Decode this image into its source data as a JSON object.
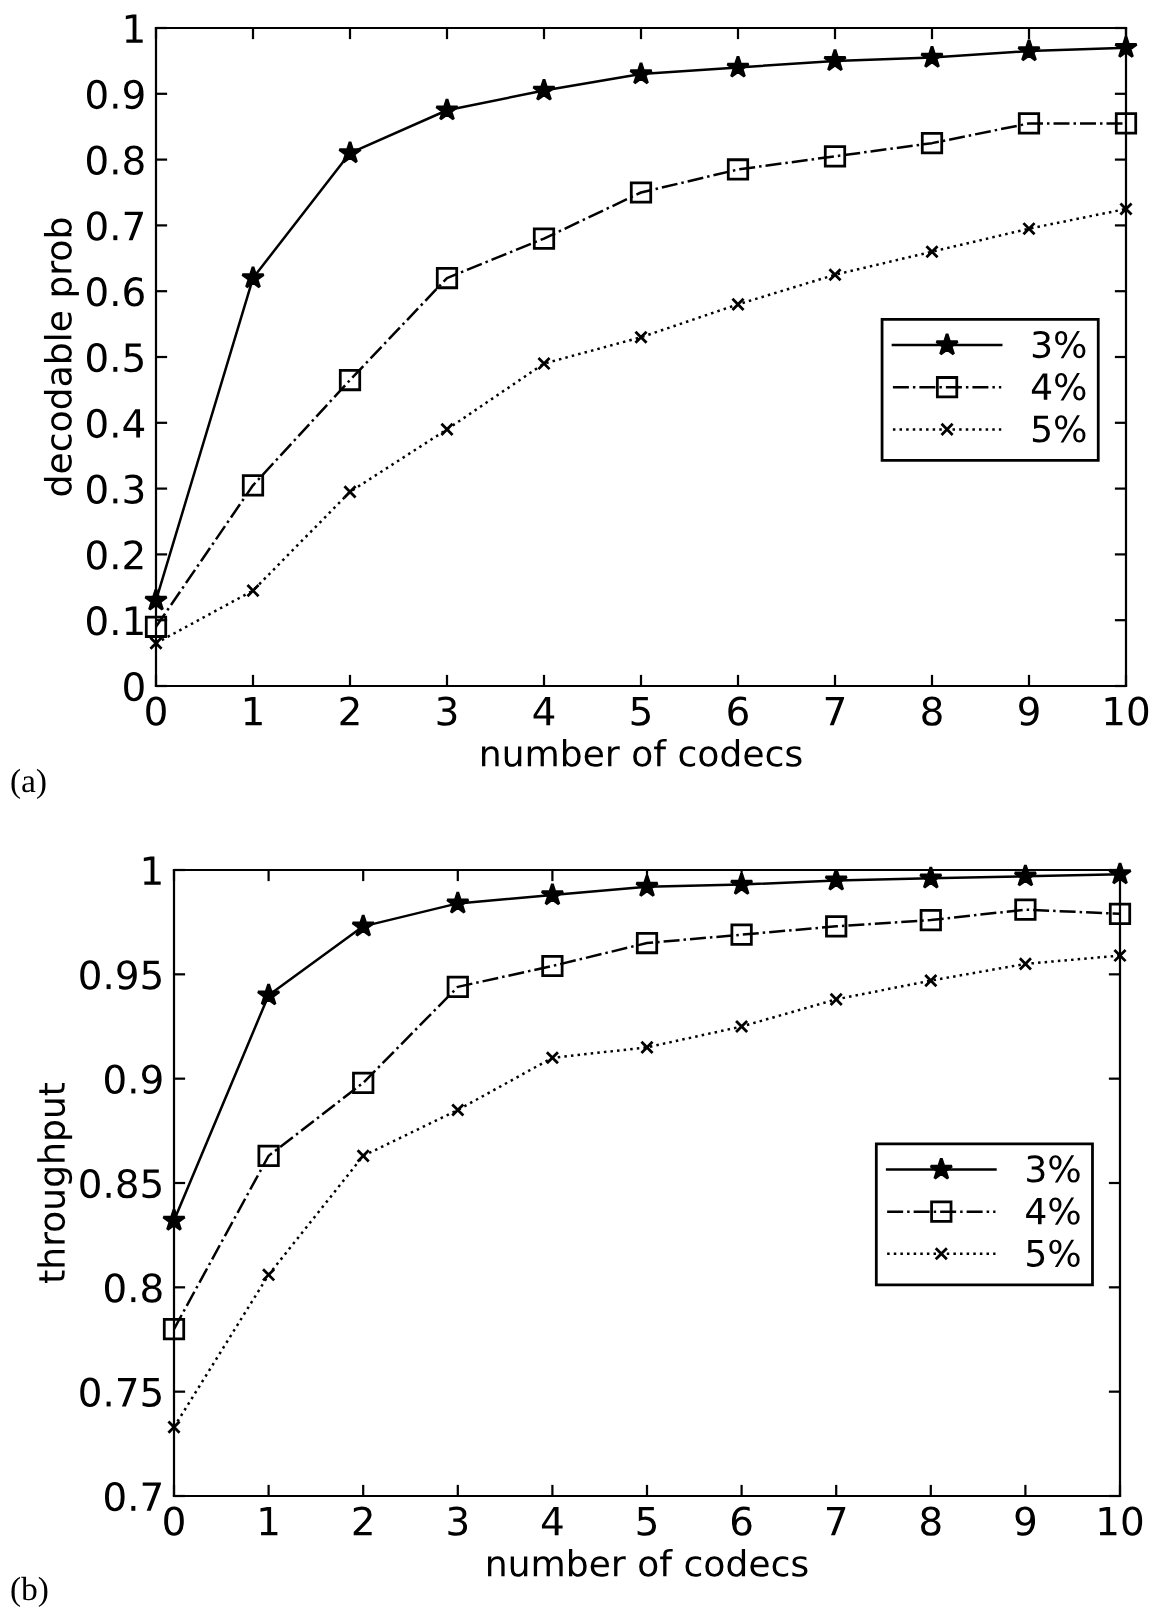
{
  "chart_data": [
    {
      "type": "line",
      "xlabel": "number of codecs",
      "ylabel": "decodable prob",
      "annotations": [
        "(a)"
      ],
      "x": [
        0,
        1,
        2,
        3,
        4,
        5,
        6,
        7,
        8,
        9,
        10
      ],
      "series": [
        {
          "name": "3%",
          "color": "#000000",
          "marker": "star",
          "line_style": "solid",
          "values": [
            0.13,
            0.62,
            0.81,
            0.875,
            0.905,
            0.93,
            0.94,
            0.95,
            0.955,
            0.965,
            0.97
          ]
        },
        {
          "name": "4%",
          "color": "#000000",
          "marker": "square",
          "line_style": "dashdot",
          "values": [
            0.09,
            0.305,
            0.465,
            0.62,
            0.68,
            0.75,
            0.785,
            0.805,
            0.825,
            0.855,
            0.855
          ]
        },
        {
          "name": "5%",
          "color": "#000000",
          "marker": "cross",
          "line_style": "dotted",
          "values": [
            0.065,
            0.145,
            0.295,
            0.39,
            0.49,
            0.53,
            0.58,
            0.625,
            0.66,
            0.695,
            0.725
          ]
        }
      ],
      "xlim": [
        0,
        10
      ],
      "xticks": [
        0,
        1,
        2,
        3,
        4,
        5,
        6,
        7,
        8,
        9,
        10
      ],
      "ylim": [
        0,
        1
      ],
      "yticks": [
        0,
        0.1,
        0.2,
        0.3,
        0.4,
        0.5,
        0.6,
        0.7,
        0.8,
        0.9,
        1
      ],
      "grid": false,
      "legend": "right"
    },
    {
      "type": "line",
      "xlabel": "number of codecs",
      "ylabel": "throughput",
      "annotations": [
        "(b)"
      ],
      "x": [
        0,
        1,
        2,
        3,
        4,
        5,
        6,
        7,
        8,
        9,
        10
      ],
      "series": [
        {
          "name": "3%",
          "color": "#000000",
          "marker": "star",
          "line_style": "solid",
          "values": [
            0.832,
            0.94,
            0.973,
            0.984,
            0.988,
            0.992,
            0.993,
            0.995,
            0.996,
            0.997,
            0.998
          ]
        },
        {
          "name": "4%",
          "color": "#000000",
          "marker": "square",
          "line_style": "dashdot",
          "values": [
            0.78,
            0.863,
            0.898,
            0.944,
            0.954,
            0.965,
            0.969,
            0.973,
            0.976,
            0.981,
            0.979
          ]
        },
        {
          "name": "5%",
          "color": "#000000",
          "marker": "cross",
          "line_style": "dotted",
          "values": [
            0.733,
            0.806,
            0.863,
            0.885,
            0.91,
            0.915,
            0.925,
            0.938,
            0.947,
            0.955,
            0.959
          ]
        }
      ],
      "xlim": [
        0,
        10
      ],
      "xticks": [
        0,
        1,
        2,
        3,
        4,
        5,
        6,
        7,
        8,
        9,
        10
      ],
      "ylim": [
        0.7,
        1
      ],
      "yticks": [
        0.7,
        0.75,
        0.8,
        0.85,
        0.9,
        0.95,
        1
      ],
      "grid": false,
      "legend": "right"
    }
  ]
}
